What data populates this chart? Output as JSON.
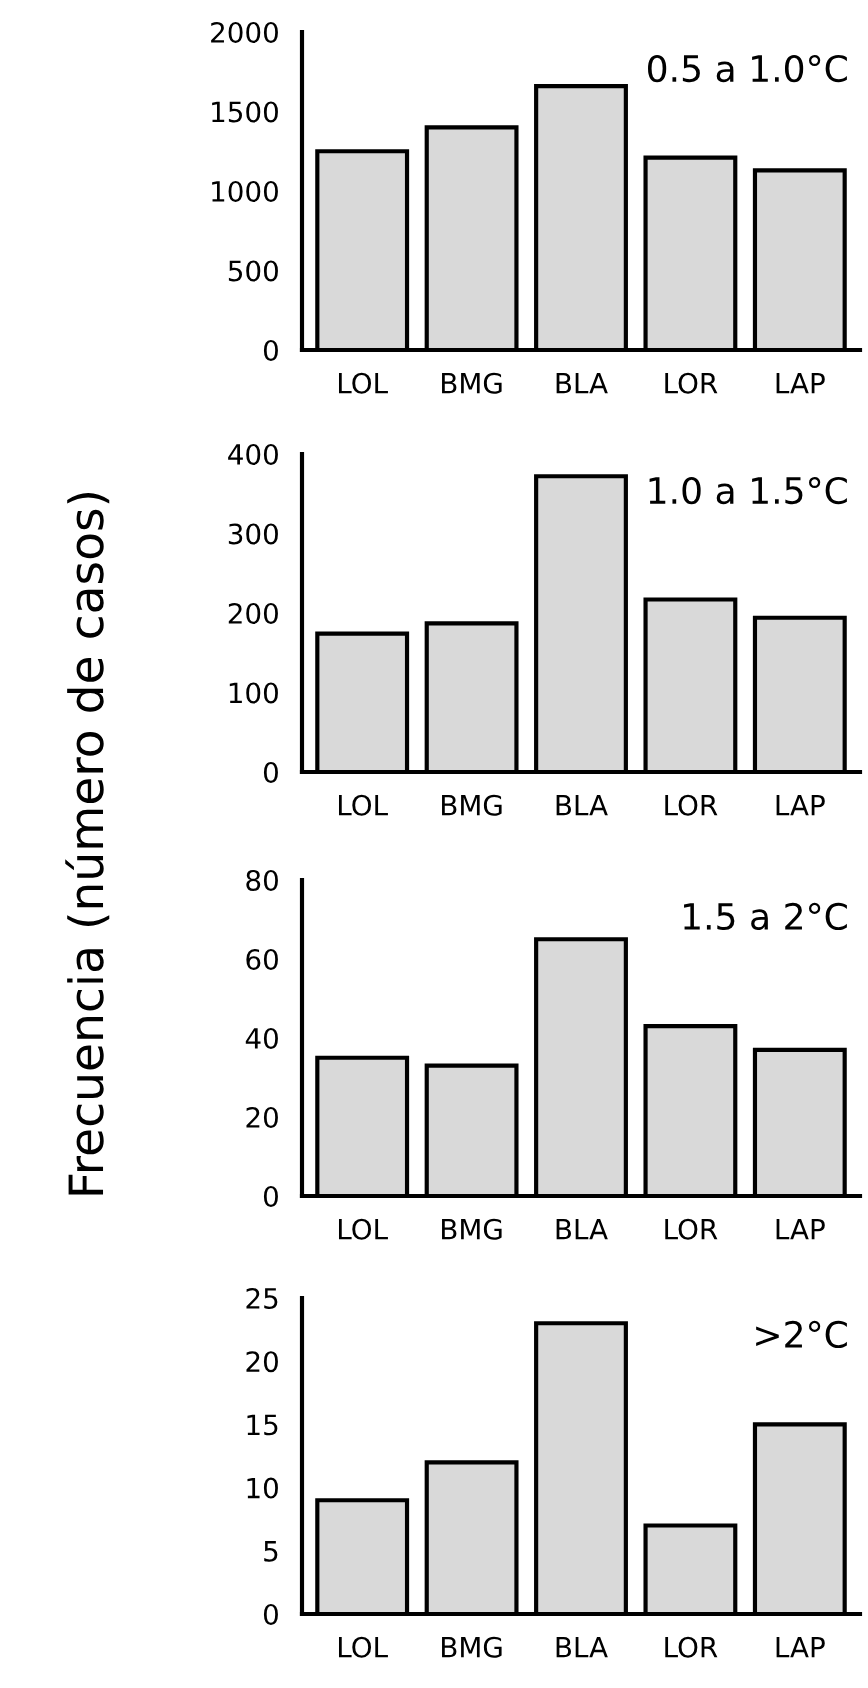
{
  "chart_data": [
    {
      "type": "bar",
      "title": "0.5 a 1.0°C",
      "ylabel": "Frecuencia (número de casos)",
      "categories": [
        "LOL",
        "BMG",
        "BLA",
        "LOR",
        "LAP"
      ],
      "values": [
        1250,
        1400,
        1660,
        1210,
        1130
      ],
      "color": "#d9d9d9",
      "ylim": [
        0,
        2000
      ],
      "yticks": [
        0,
        500,
        1000,
        1500,
        2000
      ],
      "grid": false,
      "legend": false
    },
    {
      "type": "bar",
      "title": "1.0 a 1.5°C",
      "categories": [
        "LOL",
        "BMG",
        "BLA",
        "LOR",
        "LAP"
      ],
      "values": [
        174,
        187,
        372,
        217,
        194
      ],
      "color": "#d9d9d9",
      "ylim": [
        0,
        400
      ],
      "yticks": [
        0,
        100,
        200,
        300,
        400
      ],
      "grid": false,
      "legend": false
    },
    {
      "type": "bar",
      "title": "1.5 a 2°C",
      "categories": [
        "LOL",
        "BMG",
        "BLA",
        "LOR",
        "LAP"
      ],
      "values": [
        35,
        33,
        65,
        43,
        37
      ],
      "color": "#d9d9d9",
      "ylim": [
        0,
        80
      ],
      "yticks": [
        0,
        20,
        40,
        60,
        80
      ],
      "grid": false,
      "legend": false
    },
    {
      "type": "bar",
      "title": ">2°C",
      "categories": [
        "LOL",
        "BMG",
        "BLA",
        "LOR",
        "LAP"
      ],
      "values": [
        9,
        12,
        23,
        7,
        15
      ],
      "color": "#d9d9d9",
      "ylim": [
        0,
        25
      ],
      "yticks": [
        0,
        5,
        10,
        15,
        20,
        25
      ],
      "grid": false,
      "legend": false
    }
  ]
}
